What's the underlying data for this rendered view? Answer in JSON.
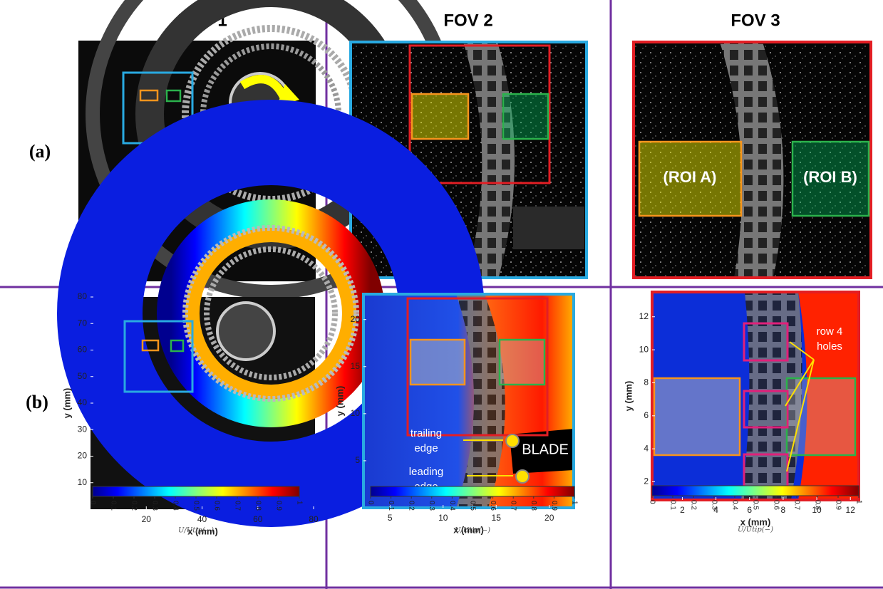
{
  "columns": [
    "FOV 1",
    "FOV 2",
    "FOV 3"
  ],
  "rows": [
    "(a)",
    "(b)"
  ],
  "panels": [
    {
      "label": "FOV 1 (a)"
    },
    {
      "label": "FOV 2 (a)"
    },
    {
      "roi_labels": [
        "(ROI A)",
        "(ROI B)"
      ]
    },
    {
      "xlabel": "x (mm)",
      "ylabel": "y (mm)",
      "xlim": [
        0,
        80.5
      ],
      "ylim": [
        0,
        80
      ],
      "xticks": [
        20,
        40,
        60,
        80
      ],
      "yticks": [
        10,
        20,
        30,
        40,
        50,
        60,
        70,
        80
      ],
      "colorbar": {
        "ticks": [
          0,
          0.1,
          0.2,
          0.3,
          0.4,
          0.5,
          0.6,
          0.7,
          0.8,
          0.9,
          1
        ],
        "label": "U/Utip(−)"
      }
    },
    {
      "xlabel": "x (mm)",
      "ylabel": "y (mm)",
      "xlim": [
        2.5,
        22.3
      ],
      "ylim": [
        0,
        22.7
      ],
      "xticks": [
        5,
        10,
        15,
        20
      ],
      "yticks": [
        5,
        10,
        15,
        20
      ],
      "annotations": [
        [
          "trailing",
          "edge"
        ],
        [
          "leading",
          "edge"
        ],
        "BLADE"
      ],
      "colorbar": {
        "ticks": [
          0,
          0.1,
          0.2,
          0.3,
          0.4,
          0.5,
          0.6,
          0.7,
          0.8,
          0.9,
          1
        ],
        "label": "U/Utip(−)"
      }
    },
    {
      "xlabel": "x (mm)",
      "ylabel": "y (mm)",
      "xlim": [
        0.2,
        12.5
      ],
      "ylim": [
        0.9,
        13.5
      ],
      "xticks": [
        2,
        4,
        6,
        8,
        10,
        12
      ],
      "yticks": [
        2,
        4,
        6,
        8,
        10,
        12
      ],
      "annotations": [
        [
          "row 4",
          "holes"
        ]
      ],
      "colorbar": {
        "ticks": [
          0,
          0.1,
          0.2,
          0.3,
          0.4,
          0.5,
          0.6,
          0.7,
          0.8,
          0.9,
          1
        ],
        "label": "U/Utip(−)"
      }
    }
  ]
}
